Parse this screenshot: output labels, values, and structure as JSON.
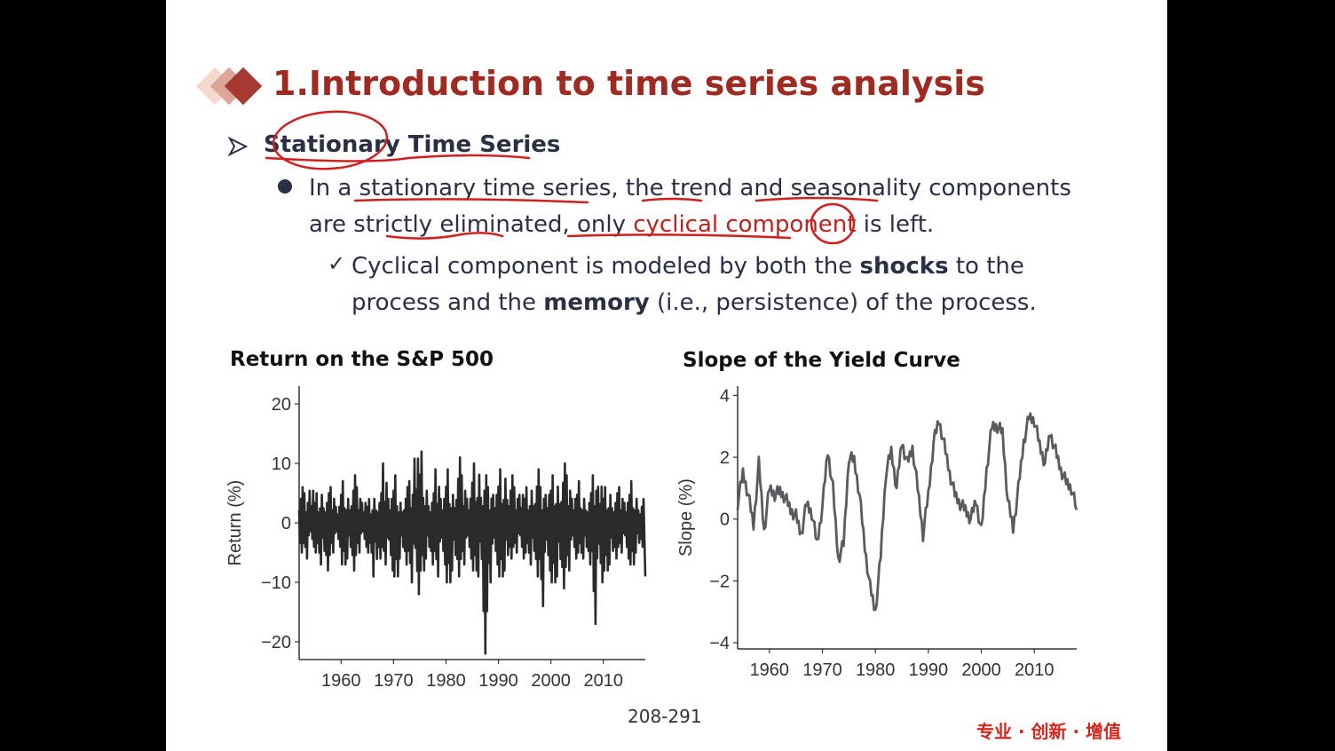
{
  "slide": {
    "title": "1.Introduction to time series analysis",
    "heading": "Stationary Time Series",
    "bullet_parts": [
      "In a ",
      "stationary time series",
      ", the ",
      "trend",
      " and ",
      "seasonality",
      " components are strictly ",
      "eliminated",
      ", only ",
      "cyclical component",
      " is left."
    ],
    "sub_parts": [
      "Cyclical component is modeled by both the ",
      "shocks",
      " to the process and the ",
      "memory",
      " (i.e., persistence) of the process."
    ],
    "page_number": "208-291",
    "brand": "专业 · 创新 · 增值"
  },
  "colors": {
    "title": "#9e2a22",
    "text": "#2b2f45",
    "annotation": "#d01f1f",
    "highlight": "#c0221b"
  },
  "chart_data": [
    {
      "type": "line",
      "title": "Return on the S&P 500",
      "xlabel": "",
      "ylabel": "Return (%)",
      "xlim": [
        1952,
        2018
      ],
      "ylim": [
        -23,
        23
      ],
      "xticks": [
        1960,
        1970,
        1980,
        1990,
        2000,
        2010
      ],
      "yticks": [
        20,
        10,
        0,
        -10,
        -20
      ],
      "ytick_labels": [
        "20",
        "10",
        "0",
        "−10",
        "−20"
      ],
      "grid": false,
      "series": [
        {
          "color": "#2a2a2a",
          "x": [
            1952,
            1953,
            1954,
            1955,
            1956,
            1957,
            1958,
            1959,
            1960,
            1961,
            1962,
            1963,
            1964,
            1965,
            1966,
            1967,
            1968,
            1969,
            1970,
            1971,
            1972,
            1973,
            1974,
            1975,
            1976,
            1977,
            1978,
            1979,
            1980,
            1981,
            1982,
            1983,
            1984,
            1985,
            1986,
            1987,
            1988,
            1989,
            1990,
            1991,
            1992,
            1993,
            1994,
            1995,
            1996,
            1997,
            1998,
            1999,
            2000,
            2001,
            2002,
            2003,
            2004,
            2005,
            2006,
            2007,
            2008,
            2009,
            2010,
            2011,
            2012,
            2013,
            2014,
            2015,
            2016,
            2017,
            2018
          ],
          "high": [
            6,
            5,
            8,
            5,
            7,
            5,
            6,
            4,
            7,
            6,
            8,
            6,
            5,
            4,
            6,
            5,
            10,
            6,
            8,
            5,
            6,
            7,
            16,
            12,
            8,
            5,
            9,
            6,
            9,
            7,
            11,
            8,
            6,
            10,
            12,
            8,
            6,
            7,
            9,
            11,
            8,
            6,
            7,
            6,
            8,
            9,
            6,
            7,
            8,
            9,
            10,
            8,
            6,
            7,
            6,
            5,
            8,
            9,
            6,
            7,
            5,
            6,
            5,
            7,
            6,
            4,
            3
          ],
          "low": [
            -5,
            -6,
            -4,
            -5,
            -7,
            -8,
            -5,
            -4,
            -7,
            -6,
            -8,
            -5,
            -4,
            -5,
            -9,
            -6,
            -7,
            -8,
            -9,
            -6,
            -7,
            -10,
            -12,
            -8,
            -6,
            -7,
            -9,
            -7,
            -10,
            -8,
            -9,
            -7,
            -6,
            -8,
            -9,
            -22,
            -10,
            -7,
            -9,
            -8,
            -6,
            -5,
            -6,
            -5,
            -7,
            -9,
            -14,
            -8,
            -10,
            -9,
            -11,
            -8,
            -6,
            -5,
            -6,
            -7,
            -17,
            -10,
            -8,
            -7,
            -6,
            -5,
            -6,
            -7,
            -5,
            -4,
            -9
          ]
        }
      ]
    },
    {
      "type": "line",
      "title": "Slope of the Yield Curve",
      "xlabel": "",
      "ylabel": "Slope (%)",
      "xlim": [
        1954,
        2018
      ],
      "ylim": [
        -4.2,
        4.3
      ],
      "xticks": [
        1960,
        1970,
        1980,
        1990,
        2000,
        2010
      ],
      "yticks": [
        4,
        2,
        0,
        -2,
        -4
      ],
      "ytick_labels": [
        "4",
        "2",
        "0",
        "−2",
        "−4"
      ],
      "grid": false,
      "series": [
        {
          "color": "#5a5a5f",
          "x": [
            1954,
            1955,
            1956,
            1957,
            1958,
            1959,
            1960,
            1961,
            1962,
            1963,
            1964,
            1965,
            1966,
            1967,
            1968,
            1969,
            1970,
            1971,
            1972,
            1973,
            1974,
            1975,
            1976,
            1977,
            1978,
            1979,
            1980,
            1981,
            1982,
            1983,
            1984,
            1985,
            1986,
            1987,
            1988,
            1989,
            1990,
            1991,
            1992,
            1993,
            1994,
            1995,
            1996,
            1997,
            1998,
            1999,
            2000,
            2001,
            2002,
            2003,
            2004,
            2005,
            2006,
            2007,
            2008,
            2009,
            2010,
            2011,
            2012,
            2013,
            2014,
            2015,
            2016,
            2017,
            2018
          ],
          "y": [
            0.5,
            1.5,
            0.8,
            -0.2,
            1.8,
            -0.4,
            1.0,
            0.8,
            0.9,
            0.7,
            0.3,
            0.1,
            -0.5,
            0.5,
            0.2,
            -0.8,
            0.4,
            2.2,
            1.0,
            -1.3,
            -0.8,
            2.0,
            1.9,
            0.8,
            -0.9,
            -2.2,
            -3.0,
            -1.2,
            1.5,
            2.2,
            1.0,
            2.5,
            1.8,
            2.3,
            1.0,
            -0.5,
            0.8,
            2.5,
            3.2,
            2.4,
            1.5,
            0.8,
            0.5,
            0.3,
            0.0,
            0.6,
            -0.4,
            1.6,
            3.0,
            3.0,
            2.8,
            0.6,
            -0.3,
            1.0,
            2.5,
            3.3,
            3.2,
            2.4,
            1.8,
            2.8,
            2.2,
            1.6,
            1.2,
            1.0,
            0.3
          ]
        }
      ]
    }
  ]
}
